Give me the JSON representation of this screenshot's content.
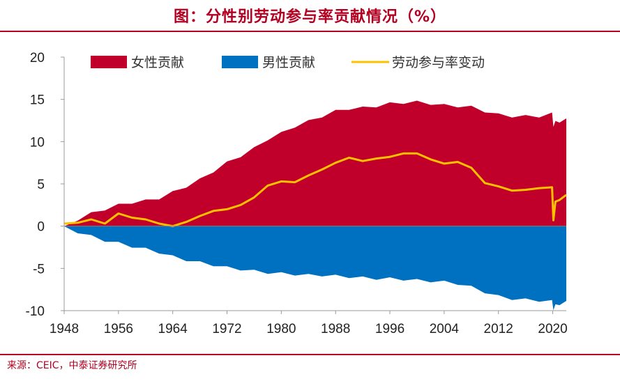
{
  "header": {
    "title": "图：分性别劳动参与率贡献情况（%）"
  },
  "footer": {
    "source": "来源：CEIC，中泰证券研究所"
  },
  "colors": {
    "female": "#c0002b",
    "male": "#0070c0",
    "line": "#ffc000",
    "accent": "#b30021"
  },
  "chart_data": {
    "type": "area",
    "title": "图：分性别劳动参与率贡献情况（%）",
    "xlabel": "",
    "ylabel": "",
    "xlim": [
      1948,
      2022
    ],
    "ylim": [
      -10,
      20
    ],
    "y_ticks": [
      -10,
      -5,
      0,
      5,
      10,
      15,
      20
    ],
    "y_tick_labels": [
      "-10",
      "-5",
      "0",
      "5",
      "10",
      "15",
      "20"
    ],
    "x_ticks": [
      1948,
      1956,
      1964,
      1972,
      1980,
      1988,
      1996,
      2004,
      2012,
      2020
    ],
    "x_tick_labels": [
      "1948",
      "1956",
      "1964",
      "1972",
      "1980",
      "1988",
      "1996",
      "2004",
      "2012",
      "2020"
    ],
    "legend_position": "top",
    "x": [
      1948,
      1950,
      1952,
      1954,
      1956,
      1958,
      1960,
      1962,
      1964,
      1966,
      1968,
      1970,
      1972,
      1974,
      1976,
      1978,
      1980,
      1982,
      1984,
      1986,
      1988,
      1990,
      1992,
      1994,
      1996,
      1998,
      2000,
      2002,
      2004,
      2006,
      2008,
      2010,
      2012,
      2014,
      2016,
      2018,
      2019.9,
      2020.1,
      2020.4,
      2021,
      2022
    ],
    "series": [
      {
        "name": "女性贡献",
        "color": "#c0002b",
        "values": [
          0,
          0.8,
          1.5,
          2.0,
          2.5,
          2.8,
          3.0,
          3.3,
          4.0,
          4.7,
          5.5,
          6.5,
          7.5,
          8.3,
          9.2,
          10.3,
          11.0,
          11.8,
          12.4,
          13.0,
          13.6,
          13.9,
          14.0,
          14.2,
          14.5,
          14.6,
          14.7,
          14.5,
          14.3,
          14.2,
          14.1,
          13.6,
          13.2,
          13.0,
          13.0,
          13.0,
          13.3,
          11.9,
          12.3,
          12.4,
          12.6
        ]
      },
      {
        "name": "男性贡献",
        "color": "#0070c0",
        "values": [
          0,
          -0.7,
          -1.2,
          -1.7,
          -2.0,
          -2.4,
          -2.7,
          -3.1,
          -3.6,
          -4.0,
          -4.3,
          -4.6,
          -4.9,
          -5.1,
          -5.3,
          -5.5,
          -5.6,
          -5.7,
          -5.8,
          -5.8,
          -5.9,
          -6.0,
          -6.1,
          -6.2,
          -6.2,
          -6.3,
          -6.4,
          -6.5,
          -6.6,
          -6.8,
          -7.2,
          -7.8,
          -8.3,
          -8.6,
          -8.7,
          -8.8,
          -8.9,
          -9.8,
          -9.4,
          -9.2,
          -9.0
        ]
      },
      {
        "name": "劳动参与率变动",
        "color": "#ffc000",
        "values": [
          0.3,
          0.4,
          0.8,
          0.3,
          1.5,
          1.0,
          0.8,
          0.3,
          0.0,
          0.5,
          1.2,
          1.8,
          2.0,
          2.5,
          3.4,
          4.8,
          5.3,
          5.2,
          6.0,
          6.7,
          7.5,
          8.1,
          7.7,
          8.0,
          8.2,
          8.6,
          8.6,
          7.9,
          7.4,
          7.6,
          6.9,
          5.1,
          4.7,
          4.2,
          4.3,
          4.5,
          4.6,
          0.7,
          2.9,
          3.1,
          3.7
        ]
      }
    ]
  }
}
